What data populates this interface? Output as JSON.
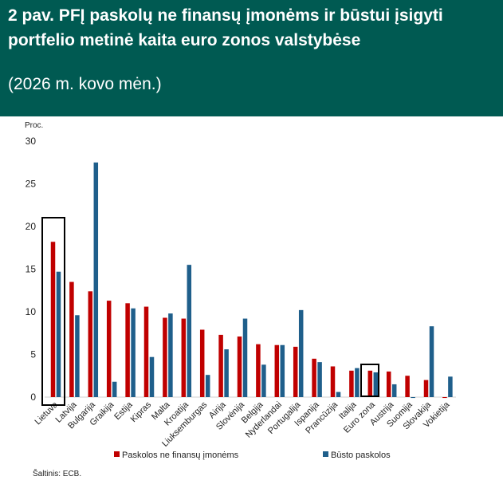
{
  "header": {
    "title": "2 pav.  PFĮ paskolų ne finansų įmonėms ir būstui įsigyti portfelio metinė kaita euro zonos valstybėse",
    "subtitle": "(2026 m. kovo mėn.)"
  },
  "source": "Šaltinis: ECB.",
  "chart_data": {
    "type": "bar",
    "ylabel": "Proc.",
    "ylim": [
      0,
      30
    ],
    "yticks": [
      0,
      5,
      10,
      15,
      20,
      25,
      30
    ],
    "grid": false,
    "legend_position": "bottom",
    "categories": [
      "Lietuva",
      "Latvija",
      "Bulgarija",
      "Graikija",
      "Estija",
      "Kipras",
      "Malta",
      "Kroatija",
      "Liuksemburgas",
      "Airija",
      "Slovėnija",
      "Belgija",
      "Nyderlandai",
      "Portugalija",
      "Ispanija",
      "Prancūzija",
      "Italija",
      "Euro zona",
      "Austrija",
      "Suomija",
      "Slovakija",
      "Vokietija"
    ],
    "series": [
      {
        "name": "Paskolos ne finansų įmonėms",
        "color": "#c00000",
        "values": [
          18.2,
          13.5,
          12.4,
          11.3,
          11.0,
          10.6,
          9.3,
          9.2,
          7.9,
          7.3,
          7.1,
          6.2,
          6.1,
          5.9,
          4.5,
          3.6,
          3.1,
          3.1,
          3.0,
          2.5,
          2.0,
          -0.1
        ]
      },
      {
        "name": "Būsto paskolos",
        "color": "#1f5f8b",
        "values": [
          14.7,
          9.6,
          27.5,
          1.8,
          10.4,
          4.7,
          9.8,
          15.5,
          2.6,
          5.6,
          9.2,
          3.8,
          6.1,
          10.2,
          4.1,
          0.6,
          3.4,
          2.9,
          1.5,
          -0.1,
          8.3,
          2.4
        ]
      }
    ],
    "highlighted": [
      "Lietuva",
      "Euro zona"
    ]
  }
}
